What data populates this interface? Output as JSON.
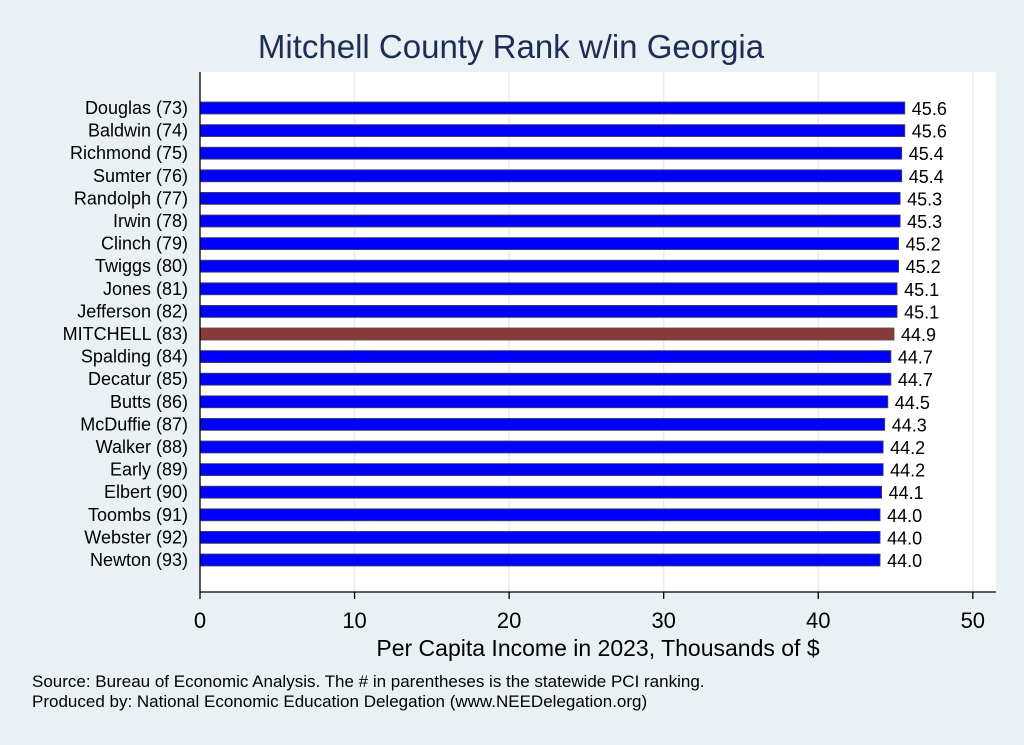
{
  "chart_data": {
    "type": "bar",
    "orientation": "horizontal",
    "title": "Mitchell County Rank w/in Georgia",
    "xlabel": "Per Capita Income in 2023, Thousands of $",
    "xlim": [
      0,
      51.5
    ],
    "xticks": [
      0,
      10,
      20,
      30,
      40,
      50
    ],
    "grid": true,
    "categories": [
      "Douglas (73)",
      "Baldwin (74)",
      "Richmond (75)",
      "Sumter (76)",
      "Randolph (77)",
      "Irwin (78)",
      "Clinch (79)",
      "Twiggs (80)",
      "Jones (81)",
      "Jefferson (82)",
      "MITCHELL (83)",
      "Spalding (84)",
      "Decatur (85)",
      "Butts (86)",
      "McDuffie (87)",
      "Walker (88)",
      "Early (89)",
      "Elbert (90)",
      "Toombs (91)",
      "Webster (92)",
      "Newton (93)"
    ],
    "values": [
      45.6,
      45.6,
      45.4,
      45.4,
      45.3,
      45.3,
      45.2,
      45.2,
      45.1,
      45.1,
      44.9,
      44.7,
      44.7,
      44.5,
      44.3,
      44.2,
      44.2,
      44.1,
      44.0,
      44.0,
      44.0
    ],
    "value_labels": [
      "45.6",
      "45.6",
      "45.4",
      "45.4",
      "45.3",
      "45.3",
      "45.2",
      "45.2",
      "45.1",
      "45.1",
      "44.9",
      "44.7",
      "44.7",
      "44.5",
      "44.3",
      "44.2",
      "44.2",
      "44.1",
      "44.0",
      "44.0",
      "44.0"
    ],
    "highlight_category": "MITCHELL (83)",
    "colors": {
      "bar": "#0000ff",
      "highlight": "#8b3a3a",
      "background": "#e9f1f4",
      "plot": "#ffffff",
      "title": "#1e2d55"
    }
  },
  "notes": {
    "source": "Source: Bureau of Economic Analysis. The # in parentheses is the statewide PCI ranking.",
    "producer": "Produced by: National Economic Education Delegation (www.NEEDelegation.org)"
  }
}
